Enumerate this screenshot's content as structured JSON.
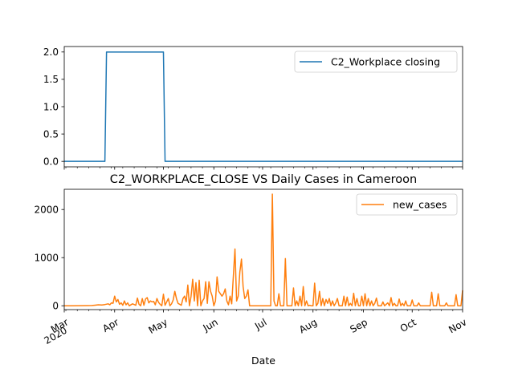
{
  "chart_data": [
    {
      "type": "line",
      "title": "",
      "xlabel": "",
      "ylabel": "",
      "ylim": [
        -0.1,
        2.1
      ],
      "yticks": [
        "0.0",
        "0.5",
        "1.0",
        "1.5",
        "2.0"
      ],
      "ytick_values": [
        0,
        0.5,
        1.0,
        1.5,
        2.0
      ],
      "legend_position": "upper-right",
      "color": "#1f77b4",
      "series": [
        {
          "name": "C2_Workplace closing",
          "points": [
            [
              "2020-03-01",
              0
            ],
            [
              "2020-03-26",
              0
            ],
            [
              "2020-03-27",
              2
            ],
            [
              "2020-05-01",
              2
            ],
            [
              "2020-05-02",
              0
            ],
            [
              "2020-11-01",
              0
            ]
          ]
        }
      ]
    },
    {
      "type": "line",
      "title": "C2_WORKPLACE_CLOSE VS Daily Cases in Cameroon",
      "xlabel": "Date",
      "ylabel": "",
      "ylim": [
        -80,
        2420
      ],
      "yticks": [
        "0",
        "1000",
        "2000"
      ],
      "ytick_values": [
        0,
        1000,
        2000
      ],
      "legend_position": "upper-right",
      "color": "#ff7f0e",
      "x_axis_type": "date",
      "x_range": [
        "2020-03-01",
        "2020-11-01"
      ],
      "xticks": [
        {
          "date": "2020-03-01",
          "label": "Mar",
          "sublabel": "2020"
        },
        {
          "date": "2020-04-01",
          "label": "Apr",
          "sublabel": ""
        },
        {
          "date": "2020-05-01",
          "label": "May",
          "sublabel": ""
        },
        {
          "date": "2020-06-01",
          "label": "Jun",
          "sublabel": ""
        },
        {
          "date": "2020-07-01",
          "label": "Jul",
          "sublabel": ""
        },
        {
          "date": "2020-08-01",
          "label": "Aug",
          "sublabel": ""
        },
        {
          "date": "2020-09-01",
          "label": "Sep",
          "sublabel": ""
        },
        {
          "date": "2020-10-01",
          "label": "Oct",
          "sublabel": ""
        },
        {
          "date": "2020-11-01",
          "label": "Nov",
          "sublabel": ""
        }
      ],
      "series": [
        {
          "name": "new_cases",
          "points": [
            [
              "2020-03-01",
              0
            ],
            [
              "2020-03-05",
              0
            ],
            [
              "2020-03-10",
              1
            ],
            [
              "2020-03-15",
              3
            ],
            [
              "2020-03-18",
              5
            ],
            [
              "2020-03-20",
              12
            ],
            [
              "2020-03-22",
              20
            ],
            [
              "2020-03-24",
              15
            ],
            [
              "2020-03-26",
              25
            ],
            [
              "2020-03-28",
              40
            ],
            [
              "2020-03-29",
              20
            ],
            [
              "2020-03-30",
              60
            ],
            [
              "2020-03-31",
              50
            ],
            [
              "2020-04-01",
              200
            ],
            [
              "2020-04-02",
              80
            ],
            [
              "2020-04-03",
              130
            ],
            [
              "2020-04-04",
              30
            ],
            [
              "2020-04-05",
              60
            ],
            [
              "2020-04-06",
              10
            ],
            [
              "2020-04-07",
              100
            ],
            [
              "2020-04-08",
              20
            ],
            [
              "2020-04-09",
              60
            ],
            [
              "2020-04-10",
              0
            ],
            [
              "2020-04-12",
              40
            ],
            [
              "2020-04-14",
              10
            ],
            [
              "2020-04-15",
              160
            ],
            [
              "2020-04-16",
              30
            ],
            [
              "2020-04-17",
              0
            ],
            [
              "2020-04-18",
              150
            ],
            [
              "2020-04-19",
              10
            ],
            [
              "2020-04-20",
              140
            ],
            [
              "2020-04-21",
              170
            ],
            [
              "2020-04-22",
              60
            ],
            [
              "2020-04-23",
              100
            ],
            [
              "2020-04-24",
              80
            ],
            [
              "2020-04-25",
              90
            ],
            [
              "2020-04-26",
              20
            ],
            [
              "2020-04-27",
              150
            ],
            [
              "2020-04-28",
              70
            ],
            [
              "2020-04-29",
              30
            ],
            [
              "2020-04-30",
              0
            ],
            [
              "2020-05-01",
              240
            ],
            [
              "2020-05-02",
              10
            ],
            [
              "2020-05-03",
              80
            ],
            [
              "2020-05-04",
              150
            ],
            [
              "2020-05-05",
              0
            ],
            [
              "2020-05-06",
              40
            ],
            [
              "2020-05-07",
              120
            ],
            [
              "2020-05-08",
              300
            ],
            [
              "2020-05-09",
              150
            ],
            [
              "2020-05-10",
              50
            ],
            [
              "2020-05-12",
              10
            ],
            [
              "2020-05-13",
              150
            ],
            [
              "2020-05-14",
              200
            ],
            [
              "2020-05-15",
              80
            ],
            [
              "2020-05-16",
              430
            ],
            [
              "2020-05-17",
              0
            ],
            [
              "2020-05-18",
              200
            ],
            [
              "2020-05-19",
              550
            ],
            [
              "2020-05-20",
              100
            ],
            [
              "2020-05-21",
              480
            ],
            [
              "2020-05-22",
              0
            ],
            [
              "2020-05-23",
              530
            ],
            [
              "2020-05-24",
              0
            ],
            [
              "2020-05-25",
              100
            ],
            [
              "2020-05-26",
              150
            ],
            [
              "2020-05-27",
              500
            ],
            [
              "2020-05-28",
              50
            ],
            [
              "2020-05-29",
              500
            ],
            [
              "2020-05-30",
              300
            ],
            [
              "2020-05-31",
              200
            ],
            [
              "2020-06-01",
              0
            ],
            [
              "2020-06-02",
              100
            ],
            [
              "2020-06-03",
              600
            ],
            [
              "2020-06-04",
              300
            ],
            [
              "2020-06-05",
              250
            ],
            [
              "2020-06-06",
              200
            ],
            [
              "2020-06-07",
              250
            ],
            [
              "2020-06-08",
              350
            ],
            [
              "2020-06-09",
              100
            ],
            [
              "2020-06-10",
              20
            ],
            [
              "2020-06-11",
              200
            ],
            [
              "2020-06-12",
              40
            ],
            [
              "2020-06-14",
              1180
            ],
            [
              "2020-06-15",
              100
            ],
            [
              "2020-06-16",
              200
            ],
            [
              "2020-06-17",
              700
            ],
            [
              "2020-06-18",
              970
            ],
            [
              "2020-06-19",
              400
            ],
            [
              "2020-06-20",
              150
            ],
            [
              "2020-06-21",
              200
            ],
            [
              "2020-06-22",
              330
            ],
            [
              "2020-06-23",
              0
            ],
            [
              "2020-07-01",
              0
            ],
            [
              "2020-07-05",
              0
            ],
            [
              "2020-07-06",
              0
            ],
            [
              "2020-07-07",
              2320
            ],
            [
              "2020-07-08",
              100
            ],
            [
              "2020-07-09",
              0
            ],
            [
              "2020-07-10",
              0
            ],
            [
              "2020-07-11",
              250
            ],
            [
              "2020-07-12",
              0
            ],
            [
              "2020-07-14",
              0
            ],
            [
              "2020-07-15",
              980
            ],
            [
              "2020-07-16",
              0
            ],
            [
              "2020-07-18",
              0
            ],
            [
              "2020-07-19",
              0
            ],
            [
              "2020-07-20",
              370
            ],
            [
              "2020-07-21",
              0
            ],
            [
              "2020-07-22",
              100
            ],
            [
              "2020-07-23",
              0
            ],
            [
              "2020-07-24",
              200
            ],
            [
              "2020-07-25",
              0
            ],
            [
              "2020-07-26",
              400
            ],
            [
              "2020-07-27",
              0
            ],
            [
              "2020-07-28",
              100
            ],
            [
              "2020-07-29",
              0
            ],
            [
              "2020-07-30",
              10
            ],
            [
              "2020-07-31",
              0
            ],
            [
              "2020-08-01",
              0
            ],
            [
              "2020-08-02",
              470
            ],
            [
              "2020-08-03",
              0
            ],
            [
              "2020-08-04",
              50
            ],
            [
              "2020-08-05",
              300
            ],
            [
              "2020-08-06",
              0
            ],
            [
              "2020-08-07",
              150
            ],
            [
              "2020-08-08",
              0
            ],
            [
              "2020-08-09",
              130
            ],
            [
              "2020-08-10",
              50
            ],
            [
              "2020-08-11",
              150
            ],
            [
              "2020-08-12",
              0
            ],
            [
              "2020-08-13",
              100
            ],
            [
              "2020-08-14",
              0
            ],
            [
              "2020-08-15",
              60
            ],
            [
              "2020-08-16",
              150
            ],
            [
              "2020-08-17",
              0
            ],
            [
              "2020-08-19",
              0
            ],
            [
              "2020-08-20",
              200
            ],
            [
              "2020-08-21",
              0
            ],
            [
              "2020-08-22",
              180
            ],
            [
              "2020-08-23",
              0
            ],
            [
              "2020-08-24",
              50
            ],
            [
              "2020-08-25",
              0
            ],
            [
              "2020-08-26",
              260
            ],
            [
              "2020-08-27",
              0
            ],
            [
              "2020-08-28",
              150
            ],
            [
              "2020-08-29",
              0
            ],
            [
              "2020-08-30",
              0
            ],
            [
              "2020-08-31",
              200
            ],
            [
              "2020-09-01",
              0
            ],
            [
              "2020-09-02",
              250
            ],
            [
              "2020-09-03",
              0
            ],
            [
              "2020-09-04",
              150
            ],
            [
              "2020-09-05",
              0
            ],
            [
              "2020-09-06",
              100
            ],
            [
              "2020-09-07",
              0
            ],
            [
              "2020-09-08",
              50
            ],
            [
              "2020-09-09",
              160
            ],
            [
              "2020-09-10",
              0
            ],
            [
              "2020-09-12",
              0
            ],
            [
              "2020-09-13",
              80
            ],
            [
              "2020-09-14",
              0
            ],
            [
              "2020-09-15",
              30
            ],
            [
              "2020-09-16",
              60
            ],
            [
              "2020-09-17",
              0
            ],
            [
              "2020-09-18",
              170
            ],
            [
              "2020-09-19",
              0
            ],
            [
              "2020-09-20",
              50
            ],
            [
              "2020-09-21",
              0
            ],
            [
              "2020-09-22",
              0
            ],
            [
              "2020-09-23",
              140
            ],
            [
              "2020-09-24",
              0
            ],
            [
              "2020-09-25",
              50
            ],
            [
              "2020-09-26",
              0
            ],
            [
              "2020-09-27",
              100
            ],
            [
              "2020-09-28",
              0
            ],
            [
              "2020-09-30",
              0
            ],
            [
              "2020-10-01",
              120
            ],
            [
              "2020-10-02",
              0
            ],
            [
              "2020-10-04",
              0
            ],
            [
              "2020-10-05",
              60
            ],
            [
              "2020-10-06",
              0
            ],
            [
              "2020-10-12",
              0
            ],
            [
              "2020-10-13",
              280
            ],
            [
              "2020-10-14",
              0
            ],
            [
              "2020-10-16",
              0
            ],
            [
              "2020-10-17",
              250
            ],
            [
              "2020-10-18",
              0
            ],
            [
              "2020-10-21",
              0
            ],
            [
              "2020-10-22",
              60
            ],
            [
              "2020-10-23",
              0
            ],
            [
              "2020-10-27",
              0
            ],
            [
              "2020-10-28",
              230
            ],
            [
              "2020-10-29",
              0
            ],
            [
              "2020-10-31",
              0
            ],
            [
              "2020-11-01",
              320
            ]
          ]
        }
      ]
    }
  ]
}
